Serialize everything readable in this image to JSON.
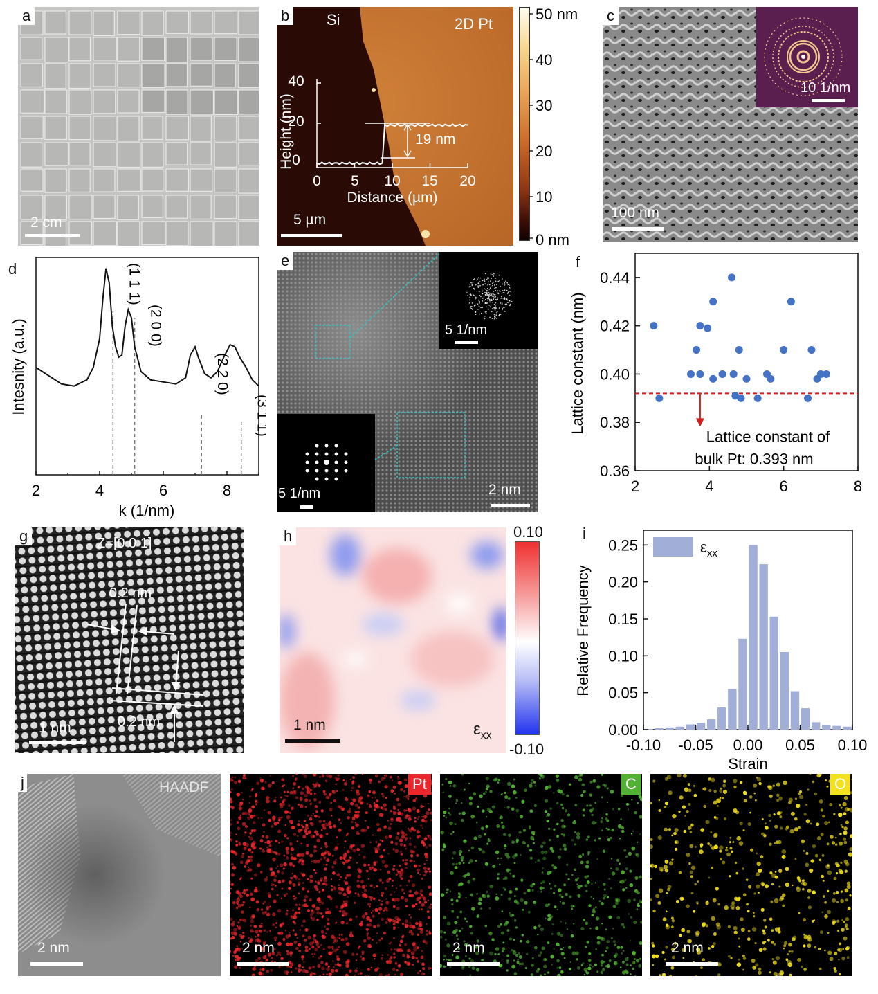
{
  "panel_labels": {
    "a": "a",
    "b": "b",
    "c": "c",
    "d": "d",
    "e": "e",
    "f": "f",
    "g": "g",
    "h": "h",
    "i": "i",
    "j": "j"
  },
  "a": {
    "scale": "2 cm"
  },
  "b": {
    "left_label": "Si",
    "right_label": "2D Pt",
    "scale": "5 µm",
    "colorbar_ticks": [
      "50 nm",
      "40",
      "30",
      "20",
      "10",
      "0 nm"
    ],
    "inset": {
      "ylabel": "Height (nm)",
      "xlabel": "Distance (µm)",
      "yticks": [
        "40",
        "20",
        "0"
      ],
      "xticks": [
        "0",
        "5",
        "10",
        "15",
        "20"
      ],
      "step": "19 nm"
    }
  },
  "c": {
    "scale": "100 nm",
    "inset_scale": "10 1/nm"
  },
  "e": {
    "scale": "2 nm",
    "inset_top_scale": "5 1/nm",
    "inset_bottom_scale": "5 1/nm"
  },
  "g": {
    "zone": "Z=[0 0 1]",
    "d_top": "0.2 nm",
    "d_bottom": "0.2 nm",
    "scale": "1 nm"
  },
  "h": {
    "scale": "1 nm",
    "label": "ε",
    "label_sub": "xx",
    "cb_top": "0.10",
    "cb_bottom": "-0.10"
  },
  "j": {
    "haadf": "HAADF",
    "pt": "Pt",
    "c": "C",
    "o": "O",
    "scales": [
      "2 nm",
      "2 nm",
      "2 nm",
      "2 nm"
    ],
    "colors": {
      "pt": "#e8262b",
      "c": "#51b133",
      "o": "#f4e11c"
    }
  },
  "chart_data": [
    {
      "id": "d",
      "type": "line",
      "xlabel": "k (1/nm)",
      "ylabel": "Intesnity (a.u.)",
      "xlim": [
        2,
        9
      ],
      "xticks": [
        2,
        4,
        6,
        8
      ],
      "peaks": [
        {
          "label": "(1 1 1)",
          "x": 4.42
        },
        {
          "label": "(2 0 0)",
          "x": 5.1
        },
        {
          "label": "(2 2 0)",
          "x": 7.2
        },
        {
          "label": "(3 1 1)",
          "x": 8.45
        }
      ],
      "series": [
        {
          "x": [
            2.0,
            2.4,
            2.8,
            3.2,
            3.6,
            3.8,
            4.0,
            4.1,
            4.2,
            4.3,
            4.4,
            4.5,
            4.6,
            4.7,
            4.8,
            4.9,
            5.0,
            5.1,
            5.3,
            5.6,
            6.0,
            6.4,
            6.7,
            6.85,
            7.0,
            7.1,
            7.3,
            7.5,
            7.7,
            7.9,
            8.1,
            8.25,
            8.4,
            8.6,
            8.8,
            9.0
          ],
          "y": [
            0.52,
            0.48,
            0.44,
            0.43,
            0.46,
            0.52,
            0.66,
            0.85,
            1.0,
            0.93,
            0.72,
            0.62,
            0.57,
            0.58,
            0.72,
            0.8,
            0.76,
            0.62,
            0.5,
            0.46,
            0.45,
            0.44,
            0.47,
            0.58,
            0.62,
            0.57,
            0.49,
            0.47,
            0.5,
            0.57,
            0.63,
            0.62,
            0.57,
            0.52,
            0.46,
            0.43
          ]
        }
      ]
    },
    {
      "id": "f",
      "type": "scatter",
      "xlabel": "",
      "ylabel": "Lattice constant (nm)",
      "xlim": [
        2,
        8
      ],
      "ylim": [
        0.36,
        0.45
      ],
      "xticks": [
        2,
        4,
        6,
        8
      ],
      "yticks": [
        0.36,
        0.38,
        0.4,
        0.42,
        0.44
      ],
      "reference": {
        "y": 0.392,
        "label_line1": "Lattice constant of",
        "label_line2": "bulk Pt: 0.393 nm"
      },
      "points": [
        [
          2.5,
          0.42
        ],
        [
          2.65,
          0.39
        ],
        [
          3.5,
          0.4
        ],
        [
          3.65,
          0.41
        ],
        [
          3.75,
          0.4
        ],
        [
          3.75,
          0.42
        ],
        [
          3.95,
          0.419
        ],
        [
          4.1,
          0.43
        ],
        [
          4.1,
          0.398
        ],
        [
          4.35,
          0.4
        ],
        [
          4.6,
          0.44
        ],
        [
          4.65,
          0.4
        ],
        [
          4.7,
          0.391
        ],
        [
          4.8,
          0.41
        ],
        [
          4.85,
          0.39
        ],
        [
          5.0,
          0.398
        ],
        [
          5.3,
          0.39
        ],
        [
          5.55,
          0.4
        ],
        [
          5.65,
          0.398
        ],
        [
          6.0,
          0.41
        ],
        [
          6.2,
          0.43
        ],
        [
          6.65,
          0.39
        ],
        [
          6.75,
          0.41
        ],
        [
          6.9,
          0.398
        ],
        [
          7.0,
          0.4
        ],
        [
          7.15,
          0.4
        ]
      ]
    },
    {
      "id": "i",
      "type": "bar",
      "xlabel": "Strain",
      "ylabel": "Relative Frequency",
      "legend": "ε",
      "legend_sub": "xx",
      "xlim": [
        -0.1,
        0.1
      ],
      "ylim": [
        0,
        0.27
      ],
      "xticks": [
        "-0.10",
        "-0.05",
        "0.00",
        "0.05",
        "0.10"
      ],
      "yticks": [
        "0.00",
        "0.05",
        "0.10",
        "0.15",
        "0.20",
        "0.25"
      ],
      "bin_centers": [
        -0.095,
        -0.085,
        -0.075,
        -0.065,
        -0.055,
        -0.045,
        -0.035,
        -0.025,
        -0.015,
        -0.005,
        0.005,
        0.015,
        0.025,
        0.035,
        0.045,
        0.055,
        0.065,
        0.075,
        0.085,
        0.095
      ],
      "values": [
        0.001,
        0.002,
        0.003,
        0.004,
        0.007,
        0.009,
        0.014,
        0.03,
        0.055,
        0.123,
        0.25,
        0.224,
        0.153,
        0.105,
        0.052,
        0.029,
        0.01,
        0.006,
        0.005,
        0.004
      ]
    }
  ]
}
